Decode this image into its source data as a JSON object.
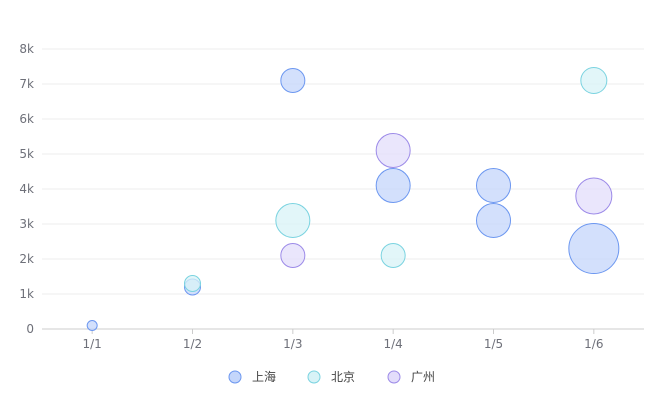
{
  "chart_data": {
    "type": "scatter",
    "categories": [
      "1/1",
      "1/2",
      "1/3",
      "1/4",
      "1/5",
      "1/6"
    ],
    "y_ticks": [
      "0",
      "1k",
      "2k",
      "3k",
      "4k",
      "5k",
      "6k",
      "7k",
      "8k"
    ],
    "ylim": [
      0,
      8000
    ],
    "grid": true,
    "legend_position": "bottom-center",
    "series": [
      {
        "name": "上海",
        "color": "#6c97f0",
        "fill": "#c4d6fb",
        "points": [
          {
            "x": "1/1",
            "y": 100,
            "size": 5
          },
          {
            "x": "1/2",
            "y": 1200,
            "size": 8
          },
          {
            "x": "1/3",
            "y": 7100,
            "size": 12
          },
          {
            "x": "1/4",
            "y": 4100,
            "size": 17
          },
          {
            "x": "1/5",
            "y": 4100,
            "size": 17
          },
          {
            "x": "1/5",
            "y": 3100,
            "size": 17
          },
          {
            "x": "1/6",
            "y": 2300,
            "size": 25
          }
        ]
      },
      {
        "name": "北京",
        "color": "#7ad3e0",
        "fill": "#d8f3f7",
        "points": [
          {
            "x": "1/2",
            "y": 1300,
            "size": 8
          },
          {
            "x": "1/3",
            "y": 3100,
            "size": 17
          },
          {
            "x": "1/4",
            "y": 2100,
            "size": 12
          },
          {
            "x": "1/6",
            "y": 7100,
            "size": 13
          }
        ]
      },
      {
        "name": "广州",
        "color": "#9c8ae8",
        "fill": "#e3ddfb",
        "points": [
          {
            "x": "1/3",
            "y": 2100,
            "size": 12
          },
          {
            "x": "1/4",
            "y": 5100,
            "size": 17
          },
          {
            "x": "1/6",
            "y": 3800,
            "size": 18
          }
        ]
      }
    ]
  }
}
